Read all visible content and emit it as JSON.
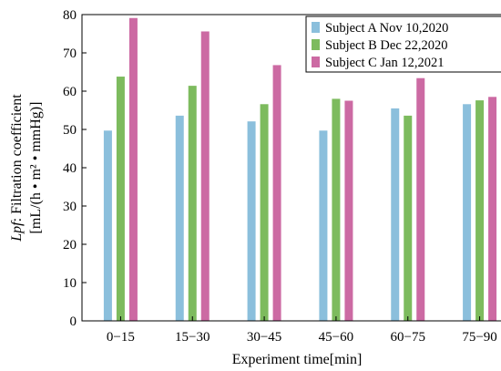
{
  "chart_data": {
    "type": "bar",
    "categories": [
      "0−15",
      "15−30",
      "30−45",
      "45−60",
      "60−75",
      "75−90"
    ],
    "series": [
      {
        "name": "Subject A Nov 10,2020",
        "color": "#8bbfdc",
        "values": [
          49.7,
          53.6,
          52.1,
          49.7,
          55.5,
          56.6
        ]
      },
      {
        "name": "Subject B Dec 22,2020",
        "color": "#7dbb5e",
        "values": [
          63.8,
          61.4,
          56.6,
          58.0,
          53.6,
          57.6
        ]
      },
      {
        "name": "Subject C Jan 12,2021",
        "color": "#cc6aa3",
        "values": [
          79.1,
          75.6,
          66.8,
          57.5,
          63.4,
          58.5
        ]
      }
    ],
    "xlabel": "Experiment time[min]",
    "ylabel_italic": "Lpf",
    "ylabel_line1": ": Filtration coefficient",
    "ylabel_line2": "[mL/(h • m² • mmHg)]",
    "ylim": [
      0,
      80
    ],
    "yticks": [
      0,
      10,
      20,
      30,
      40,
      50,
      60,
      70,
      80
    ],
    "grid": false,
    "legend_position": "top-right"
  }
}
